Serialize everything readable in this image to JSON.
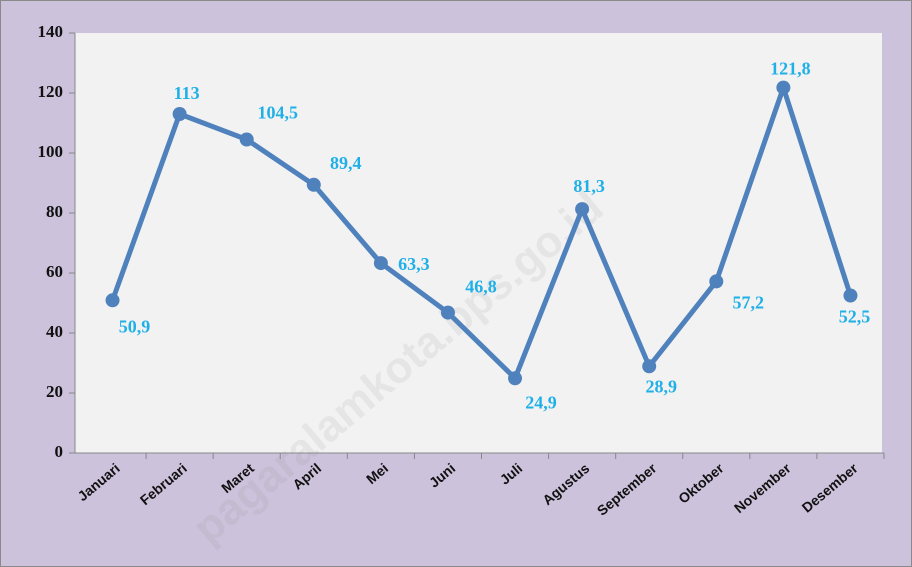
{
  "chart_data": {
    "type": "line",
    "watermark": "pagaralamkota.bps.go.id",
    "categories": [
      "Januari",
      "Februari",
      "Maret",
      "April",
      "Mei",
      "Juni",
      "Juli",
      "Agustus",
      "September",
      "Oktober",
      "November",
      "Desember"
    ],
    "series": [
      {
        "color": "#4f81bd",
        "values": [
          50.9,
          113,
          104.5,
          89.4,
          63.3,
          46.8,
          24.9,
          81.3,
          28.9,
          57.2,
          121.8,
          52.5
        ],
        "value_labels": [
          "50,9",
          "113",
          "104,5",
          "89,4",
          "63,3",
          "46,8",
          "24,9",
          "81,3",
          "28,9",
          "57,2",
          "121,8",
          "52,5"
        ]
      }
    ],
    "ylim": [
      0,
      140
    ],
    "yticks": [
      0,
      20,
      40,
      60,
      80,
      100,
      120,
      140
    ],
    "grid": false
  }
}
